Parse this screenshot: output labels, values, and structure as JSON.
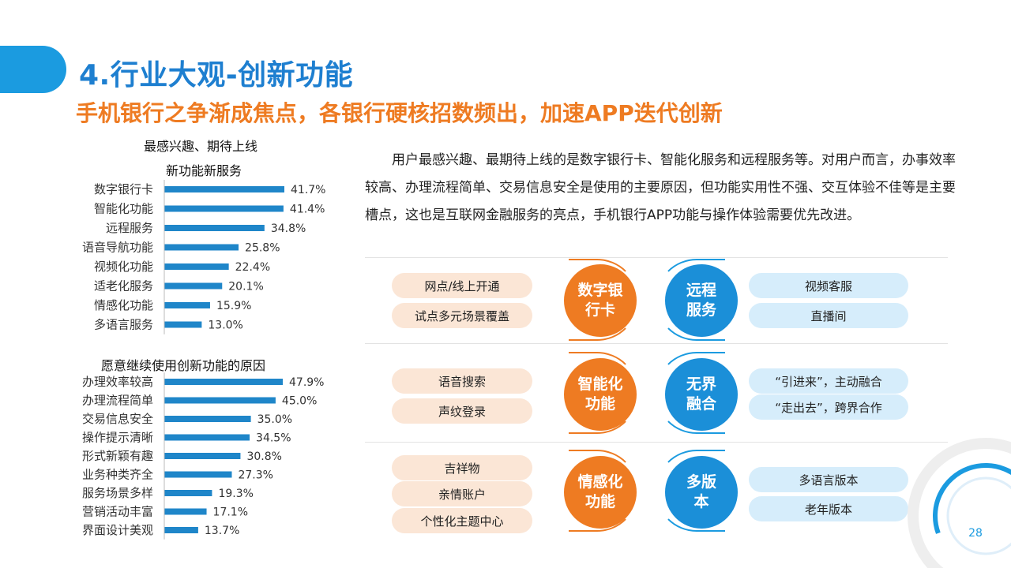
{
  "header": {
    "title": "4.行业大观-创新功能",
    "subtitle": "手机银行之争渐成焦点，各银行硬核招数频出，加速APP迭代创新"
  },
  "chart_data": [
    {
      "type": "bar",
      "orientation": "horizontal",
      "title_line1": "最感兴趣、期待上线",
      "title_line2": "新功能新服务",
      "categories": [
        "数字银行卡",
        "智能化功能",
        "远程服务",
        "语音导航功能",
        "视频化功能",
        "适老化服务",
        "情感化功能",
        "多语言服务"
      ],
      "values": [
        41.7,
        41.4,
        34.8,
        25.8,
        22.4,
        20.1,
        15.9,
        13.0
      ],
      "value_labels": [
        "41.7%",
        "41.4%",
        "34.8%",
        "25.8%",
        "22.4%",
        "20.1%",
        "15.9%",
        "13.0%"
      ],
      "xlim": [
        0,
        41.7
      ],
      "grid": false,
      "bar_color": "#1f86c9"
    },
    {
      "type": "bar",
      "orientation": "horizontal",
      "title": "愿意继续使用创新功能的原因",
      "categories": [
        "办理效率较高",
        "办理流程简单",
        "交易信息安全",
        "操作提示清晰",
        "形式新颖有趣",
        "业务种类齐全",
        "服务场景多样",
        "营销活动丰富",
        "界面设计美观"
      ],
      "values": [
        47.9,
        45.0,
        35.0,
        34.5,
        30.8,
        27.3,
        19.3,
        17.1,
        13.7
      ],
      "value_labels": [
        "47.9%",
        "45.0%",
        "35.0%",
        "34.5%",
        "30.8%",
        "27.3%",
        "19.3%",
        "17.1%",
        "13.7%"
      ],
      "xlim": [
        0,
        47.9
      ],
      "grid": false,
      "bar_color": "#1f86c9"
    }
  ],
  "description": "用户最感兴趣、最期待上线的是数字银行卡、智能化服务和远程服务等。对用户而言，办事效率较高、办理流程简单、交易信息安全是使用的主要原因，但功能实用性不强、交互体验不佳等是主要槽点，这也是互联网金融服务的亮点，手机银行APP功能与操作体验需要优先改进。",
  "features": {
    "digital_card": {
      "label": "数字银行卡",
      "items": [
        "网点/线上开通",
        "试点多元场景覆盖"
      ]
    },
    "remote": {
      "label": "远程服务",
      "items": [
        "视频客服",
        "直播间"
      ]
    },
    "smart": {
      "label": "智能化功能",
      "items": [
        "语音搜索",
        "声纹登录"
      ]
    },
    "borderless": {
      "label": "无界融合",
      "items": [
        "“引进来”，主动融合",
        "“走出去”，跨界合作"
      ]
    },
    "emotional": {
      "label": "情感化功能",
      "items": [
        "吉祥物",
        "亲情账户",
        "个性化主题中心"
      ]
    },
    "multi": {
      "label": "多版本",
      "items": [
        "多语言版本",
        "老年版本"
      ]
    }
  },
  "colors": {
    "orange": "#ee7b22",
    "blue": "#1b9be0",
    "bar": "#1f86c9"
  },
  "page_number": "28"
}
